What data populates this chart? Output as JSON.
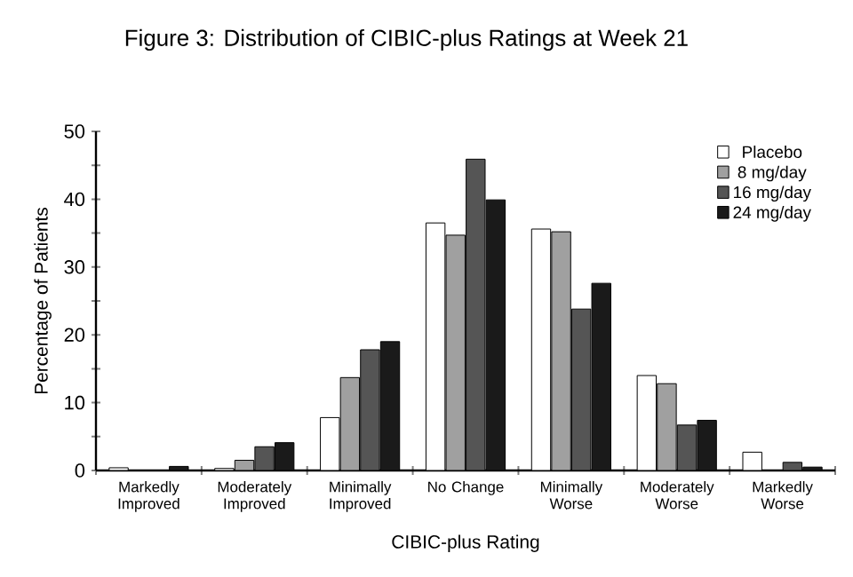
{
  "chart_data": {
    "type": "bar",
    "title": "Figure 3: Distribution of CIBIC-plus Ratings at Week 21",
    "xlabel": "CIBIC-plus Rating",
    "ylabel": "Percentage of Patients",
    "categories": [
      "Markedly Improved",
      "Moderately Improved",
      "Minimally Improved",
      "No Change",
      "Minimally Worse",
      "Moderately Worse",
      "Markedly Worse"
    ],
    "series": [
      {
        "name": "Placebo",
        "color": "#ffffff",
        "values": [
          0.4,
          0.3,
          7.8,
          36.5,
          35.6,
          14.0,
          2.7
        ]
      },
      {
        "name": "8 mg/day",
        "color": "#a0a0a0",
        "values": [
          null,
          1.5,
          13.7,
          34.7,
          35.2,
          12.8,
          null
        ]
      },
      {
        "name": "16 mg/day",
        "color": "#555555",
        "values": [
          null,
          3.5,
          17.8,
          45.9,
          23.8,
          6.7,
          1.2
        ]
      },
      {
        "name": "24 mg/day",
        "color": "#1a1a1a",
        "values": [
          0.6,
          4.1,
          19.0,
          39.9,
          27.6,
          7.4,
          0.5
        ]
      }
    ],
    "ylim": [
      0,
      50
    ],
    "yticks": [
      0,
      {
        "value": 5,
        "label": null
      },
      10,
      {
        "value": 15,
        "label": null
      },
      20,
      {
        "value": 25,
        "label": null
      },
      30,
      {
        "value": 35,
        "label": null
      },
      40,
      {
        "value": 45,
        "label": null
      },
      50
    ],
    "grid": false,
    "legend": "top right"
  }
}
